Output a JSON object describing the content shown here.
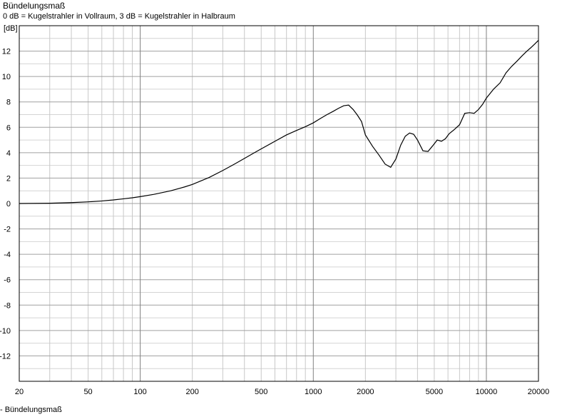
{
  "chart_data": {
    "type": "line",
    "title": "Bündelungsmaß",
    "subtitle": "0 dB = Kugelstrahler in Vollraum, 3 dB = Kugelstrahler in Halbraum",
    "ylabel": "[dB]",
    "xlabel": "",
    "xscale": "log",
    "xlim": [
      20,
      20000
    ],
    "ylim": [
      -14,
      14
    ],
    "grid": true,
    "xticks": [
      20,
      50,
      100,
      200,
      500,
      1000,
      2000,
      5000,
      10000,
      20000
    ],
    "xtick_labels": [
      "20",
      "50",
      "100",
      "200",
      "500",
      "1000",
      "2000",
      "5000",
      "10000",
      "20000"
    ],
    "yticks": [
      12,
      10,
      8,
      6,
      4,
      2,
      0,
      -2,
      -4,
      -6,
      -8,
      -10,
      -12
    ],
    "ytick_labels": [
      "12",
      "10",
      "8",
      "6",
      "4",
      "2",
      "0",
      "-2",
      "-4",
      "-6",
      "-8",
      "-10",
      "-12"
    ],
    "colors": {
      "line": "#000000",
      "grid": "#a0a0a0",
      "frame": "#000000"
    },
    "legend": {
      "position": "bottom-left",
      "label": "- Bündelungsmaß"
    },
    "series": [
      {
        "name": "Bündelungsmaß",
        "x": [
          20,
          30,
          40,
          50,
          60,
          70,
          80,
          90,
          100,
          120,
          150,
          180,
          200,
          250,
          300,
          350,
          400,
          450,
          500,
          600,
          700,
          800,
          900,
          1000,
          1100,
          1200,
          1300,
          1400,
          1500,
          1600,
          1700,
          1800,
          1900,
          2000,
          2200,
          2400,
          2600,
          2800,
          3000,
          3200,
          3400,
          3600,
          3800,
          4000,
          4300,
          4600,
          4900,
          5200,
          5500,
          5800,
          6100,
          6500,
          7000,
          7500,
          8000,
          8500,
          9000,
          9500,
          10000,
          11000,
          12000,
          13000,
          14000,
          15000,
          16000,
          17000,
          18000,
          19000,
          20000
        ],
        "values": [
          0.0,
          0.02,
          0.07,
          0.13,
          0.2,
          0.28,
          0.37,
          0.45,
          0.54,
          0.72,
          1.0,
          1.3,
          1.5,
          2.05,
          2.6,
          3.1,
          3.55,
          3.95,
          4.3,
          4.9,
          5.4,
          5.75,
          6.05,
          6.35,
          6.7,
          7.0,
          7.25,
          7.5,
          7.7,
          7.75,
          7.4,
          6.95,
          6.45,
          5.4,
          4.5,
          3.8,
          3.1,
          2.85,
          3.5,
          4.6,
          5.3,
          5.55,
          5.45,
          5.0,
          4.15,
          4.1,
          4.55,
          5.0,
          4.9,
          5.1,
          5.5,
          5.8,
          6.2,
          7.1,
          7.15,
          7.1,
          7.4,
          7.8,
          8.3,
          9.0,
          9.5,
          10.3,
          10.8,
          11.2,
          11.6,
          11.95,
          12.25,
          12.55,
          12.85
        ]
      }
    ]
  }
}
